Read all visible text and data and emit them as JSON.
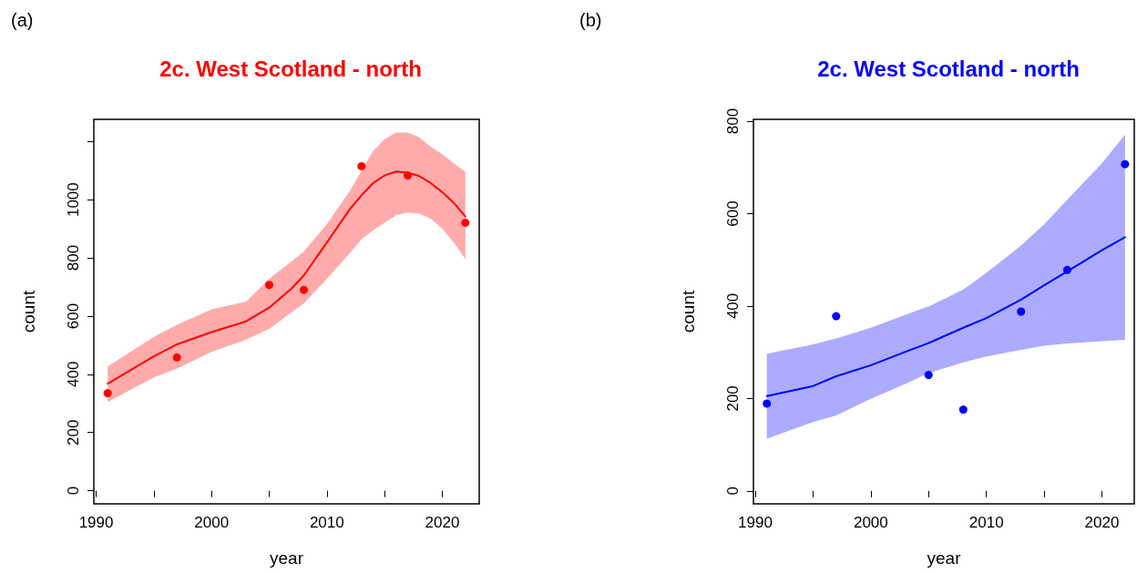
{
  "chart_data": [
    {
      "type": "line",
      "title": "2c. West Scotland - north",
      "xlabel": "year",
      "ylabel": "count",
      "annotations": [
        "(a)"
      ],
      "xlim": [
        1989.8,
        2023.2
      ],
      "xticks": [
        1990,
        {
          "value": 1995,
          "label": null
        },
        2000,
        {
          "value": 2005,
          "label": null
        },
        2010,
        {
          "value": 2015,
          "label": null
        },
        2020
      ],
      "ylim": [
        -45,
        1276
      ],
      "yticks": [
        0,
        200,
        400,
        600,
        800,
        1000,
        {
          "value": 1200,
          "label": null
        }
      ],
      "series": [
        {
          "color": "#ff0000",
          "marker": "none",
          "line_style": "solid",
          "x": [
            1991,
            1995,
            1997,
            2000,
            2003,
            2005,
            2007,
            2008,
            2010,
            2012,
            2013,
            2014,
            2015,
            2016,
            2017,
            2018,
            2019,
            2020,
            2021,
            2022
          ],
          "values": [
            368,
            462,
            503,
            545,
            582,
            629,
            697,
            740,
            853,
            968,
            1015,
            1057,
            1083,
            1097,
            1093,
            1081,
            1057,
            1026,
            989,
            942
          ],
          "lower": [
            305,
            389,
            420,
            477,
            519,
            556,
            615,
            644,
            728,
            817,
            864,
            895,
            921,
            947,
            956,
            952,
            935,
            900,
            853,
            796
          ],
          "upper": [
            427,
            529,
            570,
            623,
            650,
            728,
            790,
            822,
            916,
            1031,
            1099,
            1167,
            1208,
            1231,
            1231,
            1214,
            1182,
            1156,
            1125,
            1096
          ]
        },
        {
          "type": "scatter",
          "color": "#ff0000",
          "marker": "circle",
          "x": [
            1991,
            1997,
            2005,
            2008,
            2013,
            2017,
            2022
          ],
          "values": [
            335,
            458,
            707,
            690,
            1115,
            1083,
            921
          ]
        }
      ]
    },
    {
      "type": "line",
      "title": "2c. West Scotland - north",
      "xlabel": "year",
      "ylabel": "count",
      "annotations": [
        "(b)"
      ],
      "xlim": [
        1989.84,
        2022.8
      ],
      "xticks": [
        1990,
        {
          "value": 1995,
          "label": null
        },
        2000,
        {
          "value": 2005,
          "label": null
        },
        2010,
        {
          "value": 2015,
          "label": null
        },
        2020
      ],
      "ylim": [
        -28,
        804
      ],
      "yticks": [
        0,
        200,
        400,
        600,
        800
      ],
      "series": [
        {
          "color": "#0000ff",
          "marker": "none",
          "line_style": "solid",
          "x": [
            1991,
            1995,
            1997,
            2000,
            2003,
            2005,
            2008,
            2010,
            2013,
            2015,
            2017,
            2020,
            2022
          ],
          "values": [
            205,
            227,
            248,
            272,
            301,
            320,
            353,
            374,
            414,
            445,
            475,
            521,
            549
          ],
          "lower": [
            113,
            149,
            163,
            199,
            232,
            255,
            278,
            291,
            305,
            314,
            319,
            324,
            327
          ],
          "upper": [
            297,
            317,
            330,
            353,
            381,
            399,
            436,
            472,
            531,
            577,
            630,
            709,
            771
          ]
        },
        {
          "type": "scatter",
          "color": "#0000ff",
          "marker": "circle",
          "x": [
            1991,
            1997,
            2005,
            2008,
            2013,
            2017,
            2022
          ],
          "values": [
            189,
            378,
            251,
            176,
            388,
            478,
            707
          ]
        }
      ]
    }
  ]
}
